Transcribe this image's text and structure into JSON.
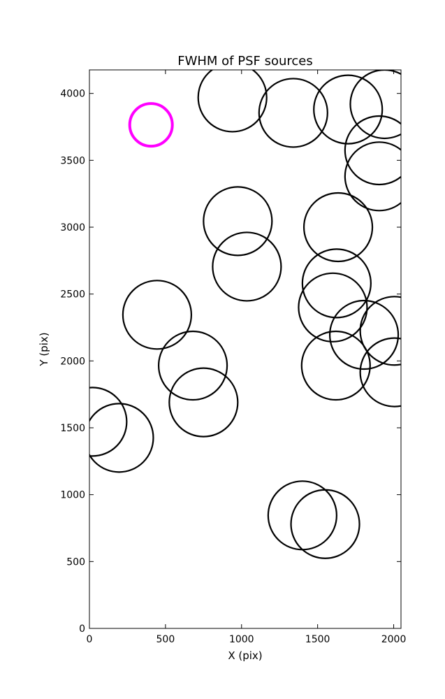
{
  "chart_data": {
    "type": "scatter",
    "title": "FWHM of PSF sources",
    "xlabel": "X (pix)",
    "ylabel": "Y (pix)",
    "xlim": [
      0,
      2048
    ],
    "ylim": [
      0,
      4176
    ],
    "xticks": [
      0,
      500,
      1000,
      1500,
      2000
    ],
    "yticks": [
      0,
      500,
      1000,
      1500,
      2000,
      2500,
      3000,
      3500,
      4000
    ],
    "grid": false,
    "legend": "none",
    "marker": "open-circle",
    "colors": {
      "sources": "#000000",
      "highlight": "#ff00ff"
    },
    "series": [
      {
        "points": [
          {
            "x": 940,
            "y": 3970,
            "r": 225
          },
          {
            "x": 1340,
            "y": 3855,
            "r": 225
          },
          {
            "x": 1700,
            "y": 3880,
            "r": 225
          },
          {
            "x": 1940,
            "y": 3920,
            "r": 225
          },
          {
            "x": 1905,
            "y": 3575,
            "r": 225
          },
          {
            "x": 1905,
            "y": 3380,
            "r": 225
          },
          {
            "x": 975,
            "y": 3045,
            "r": 225
          },
          {
            "x": 1635,
            "y": 3000,
            "r": 225
          },
          {
            "x": 1035,
            "y": 2705,
            "r": 225
          },
          {
            "x": 1625,
            "y": 2580,
            "r": 225
          },
          {
            "x": 1600,
            "y": 2400,
            "r": 225
          },
          {
            "x": 445,
            "y": 2345,
            "r": 225
          },
          {
            "x": 2005,
            "y": 2225,
            "r": 225
          },
          {
            "x": 1805,
            "y": 2195,
            "r": 225
          },
          {
            "x": 2005,
            "y": 1915,
            "r": 225
          },
          {
            "x": 1620,
            "y": 1965,
            "r": 225
          },
          {
            "x": 680,
            "y": 1965,
            "r": 225
          },
          {
            "x": 750,
            "y": 1690,
            "r": 225
          },
          {
            "x": 20,
            "y": 1545,
            "r": 225
          },
          {
            "x": 195,
            "y": 1425,
            "r": 225
          },
          {
            "x": 1400,
            "y": 845,
            "r": 225
          },
          {
            "x": 1550,
            "y": 780,
            "r": 225
          }
        ]
      },
      {
        "points": [
          {
            "x": 405,
            "y": 3765,
            "r": 140
          }
        ]
      }
    ]
  }
}
